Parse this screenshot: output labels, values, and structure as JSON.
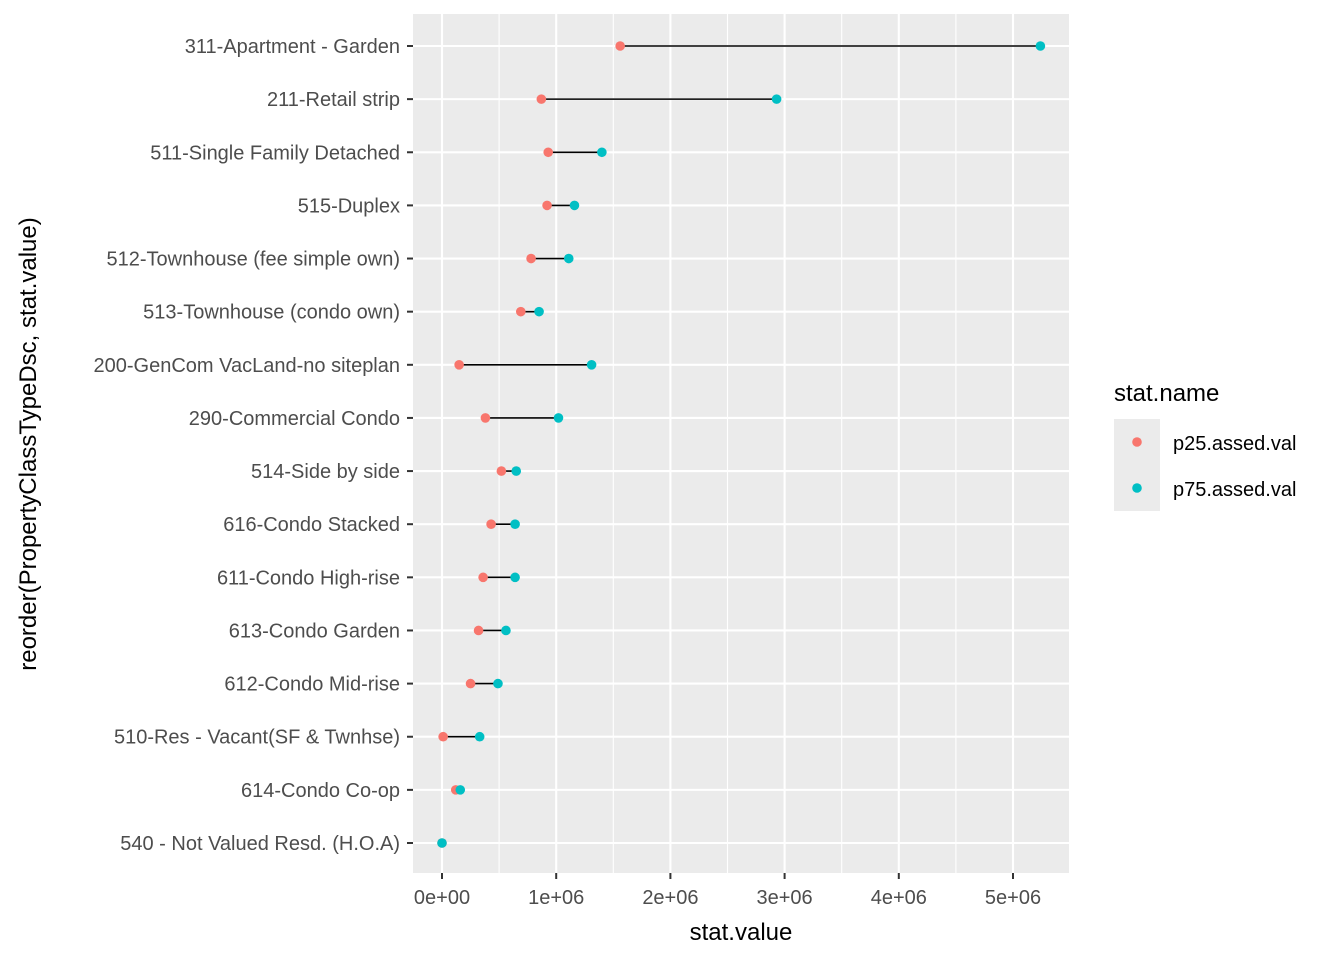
{
  "chart_data": {
    "type": "dumbbell",
    "title": "",
    "xlabel": "stat.value",
    "ylabel": "reorder(PropertyClassTypeDsc, stat.value)",
    "xlim": [
      -250000,
      5500000
    ],
    "x_ticks": [
      0,
      1000000,
      2000000,
      3000000,
      4000000,
      5000000
    ],
    "x_tick_labels": [
      "0e+00",
      "1e+06",
      "2e+06",
      "3e+06",
      "4e+06",
      "5e+06"
    ],
    "grid": true,
    "legend": {
      "title": "stat.name",
      "placement": "right",
      "entries": [
        {
          "name": "p25.assed.val",
          "color": "#F8766D"
        },
        {
          "name": "p75.assed.val",
          "color": "#00BFC4"
        }
      ]
    },
    "categories": [
      "311-Apartment - Garden",
      "211-Retail strip",
      "511-Single Family Detached",
      "515-Duplex",
      "512-Townhouse (fee simple own)",
      "513-Townhouse (condo own)",
      "200-GenCom VacLand-no siteplan",
      "290-Commercial Condo",
      "514-Side by side",
      "616-Condo Stacked",
      "611-Condo High-rise",
      "613-Condo Garden",
      "612-Condo Mid-rise",
      "510-Res - Vacant(SF & Twnhse)",
      "614-Condo Co-op",
      "540 - Not Valued Resd. (H.O.A)"
    ],
    "series": [
      {
        "name": "p25.assed.val",
        "color": "#F8766D",
        "values": [
          1560000,
          870000,
          930000,
          920000,
          780000,
          690000,
          150000,
          380000,
          520000,
          430000,
          360000,
          320000,
          250000,
          10000,
          120000,
          0
        ]
      },
      {
        "name": "p75.assed.val",
        "color": "#00BFC4",
        "values": [
          5240000,
          2930000,
          1400000,
          1160000,
          1110000,
          850000,
          1310000,
          1020000,
          650000,
          640000,
          640000,
          560000,
          490000,
          330000,
          160000,
          0
        ]
      }
    ],
    "panel_background": "#EBEBEB",
    "grid_color": "#FFFFFF",
    "segment_color": "#000000"
  }
}
